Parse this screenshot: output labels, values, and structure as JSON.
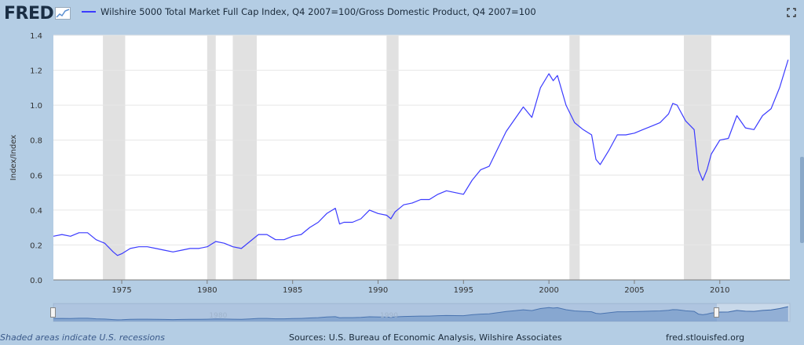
{
  "header": {
    "logo": "FRED",
    "legend_label": "Wilshire 5000 Total Market Full Cap Index, Q4 2007=100/Gross Domestic Product, Q4 2007=100"
  },
  "footer": {
    "note": "Shaded areas indicate U.S. recessions",
    "source": "Sources: U.S. Bureau of Economic Analysis, Wilshire Associates",
    "link": "fred.stlouisfed.org"
  },
  "navigator": {
    "tick_labels": [
      "1980",
      "1990"
    ]
  },
  "colors": {
    "line": "#3b3bff",
    "recession": "#e1e1e1",
    "background": "#b4cde4",
    "plot_bg": "#ffffff"
  },
  "chart_data": {
    "type": "line",
    "title": "",
    "xlabel": "",
    "ylabel": "Index/Index",
    "xlim": [
      1971,
      2014.1
    ],
    "ylim": [
      0,
      1.4
    ],
    "xticks": [
      "1975",
      "1980",
      "1985",
      "1990",
      "1995",
      "2000",
      "2005",
      "2010"
    ],
    "yticks": [
      "0.0",
      "0.2",
      "0.4",
      "0.6",
      "0.8",
      "1.0",
      "1.2",
      "1.4"
    ],
    "grid": "horizontal",
    "recessions": [
      [
        1973.9,
        1975.2
      ],
      [
        1980.0,
        1980.5
      ],
      [
        1981.5,
        1982.9
      ],
      [
        1990.5,
        1991.2
      ],
      [
        2001.2,
        2001.8
      ],
      [
        2007.9,
        2009.5
      ]
    ],
    "series": [
      {
        "name": "Wilshire 5000 Total Market Full Cap Index, Q4 2007=100/Gross Domestic Product, Q4 2007=100",
        "x": [
          1971.0,
          1971.5,
          1972.0,
          1972.5,
          1973.0,
          1973.5,
          1974.0,
          1974.5,
          1974.75,
          1975.0,
          1975.5,
          1976.0,
          1976.5,
          1977.0,
          1977.5,
          1978.0,
          1978.5,
          1979.0,
          1979.5,
          1980.0,
          1980.5,
          1981.0,
          1981.5,
          1982.0,
          1982.5,
          1983.0,
          1983.5,
          1984.0,
          1984.5,
          1985.0,
          1985.5,
          1986.0,
          1986.5,
          1987.0,
          1987.5,
          1987.75,
          1988.0,
          1988.5,
          1989.0,
          1989.5,
          1990.0,
          1990.5,
          1990.75,
          1991.0,
          1991.5,
          1992.0,
          1992.5,
          1993.0,
          1993.5,
          1994.0,
          1994.5,
          1995.0,
          1995.5,
          1996.0,
          1996.5,
          1997.0,
          1997.5,
          1998.0,
          1998.5,
          1999.0,
          1999.5,
          2000.0,
          2000.25,
          2000.5,
          2001.0,
          2001.5,
          2002.0,
          2002.5,
          2002.75,
          2003.0,
          2003.5,
          2004.0,
          2004.5,
          2005.0,
          2005.5,
          2006.0,
          2006.5,
          2007.0,
          2007.25,
          2007.5,
          2008.0,
          2008.5,
          2008.75,
          2009.0,
          2009.25,
          2009.5,
          2010.0,
          2010.5,
          2011.0,
          2011.5,
          2012.0,
          2012.5,
          2013.0,
          2013.5,
          2014.0
        ],
        "y": [
          0.25,
          0.26,
          0.25,
          0.27,
          0.27,
          0.23,
          0.21,
          0.16,
          0.14,
          0.15,
          0.18,
          0.19,
          0.19,
          0.18,
          0.17,
          0.16,
          0.17,
          0.18,
          0.18,
          0.19,
          0.22,
          0.21,
          0.19,
          0.18,
          0.22,
          0.26,
          0.26,
          0.23,
          0.23,
          0.25,
          0.26,
          0.3,
          0.33,
          0.38,
          0.41,
          0.32,
          0.33,
          0.33,
          0.35,
          0.4,
          0.38,
          0.37,
          0.35,
          0.39,
          0.43,
          0.44,
          0.46,
          0.46,
          0.49,
          0.51,
          0.5,
          0.49,
          0.57,
          0.63,
          0.65,
          0.75,
          0.85,
          0.92,
          0.99,
          0.93,
          1.1,
          1.18,
          1.14,
          1.17,
          1.0,
          0.9,
          0.86,
          0.83,
          0.69,
          0.66,
          0.74,
          0.83,
          0.83,
          0.84,
          0.86,
          0.88,
          0.9,
          0.95,
          1.01,
          1.0,
          0.91,
          0.86,
          0.63,
          0.57,
          0.63,
          0.72,
          0.8,
          0.81,
          0.94,
          0.87,
          0.86,
          0.94,
          0.98,
          1.1,
          1.26
        ]
      }
    ]
  }
}
